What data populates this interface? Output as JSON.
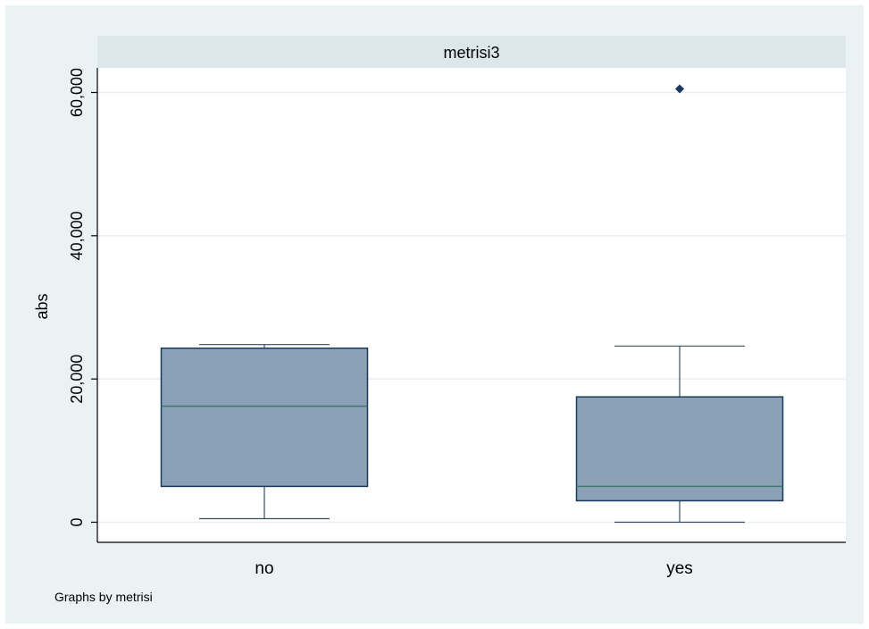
{
  "chart_data": {
    "type": "box",
    "panel_title": "metrisi3",
    "ylabel": "abs",
    "note": "Graphs by metrisi",
    "ylim": [
      -3300,
      65000
    ],
    "yticks": [
      0,
      20000,
      40000,
      60000
    ],
    "ytick_labels": [
      "0",
      "20,000",
      "40,000",
      "60,000"
    ],
    "categories": [
      "no",
      "yes"
    ],
    "boxes": [
      {
        "category": "no",
        "whisker_low": 500,
        "q1": 5000,
        "median": 16200,
        "q3": 24300,
        "whisker_high": 24800,
        "outliers": []
      },
      {
        "category": "yes",
        "whisker_low": 0,
        "q1": 3000,
        "median": 5000,
        "q3": 17500,
        "whisker_high": 24600,
        "outliers": [
          60500
        ]
      }
    ],
    "grid": true,
    "colors": {
      "box_fill": "#8ba1b5",
      "box_edge": "#1a3a5c",
      "median": "#3e7a70",
      "whisker": "#3a4f63",
      "outlier": "#1a3a5c",
      "panel_header": "#dde6ea",
      "background": "#eaf2f3",
      "grid": "#e8f0f2"
    }
  }
}
